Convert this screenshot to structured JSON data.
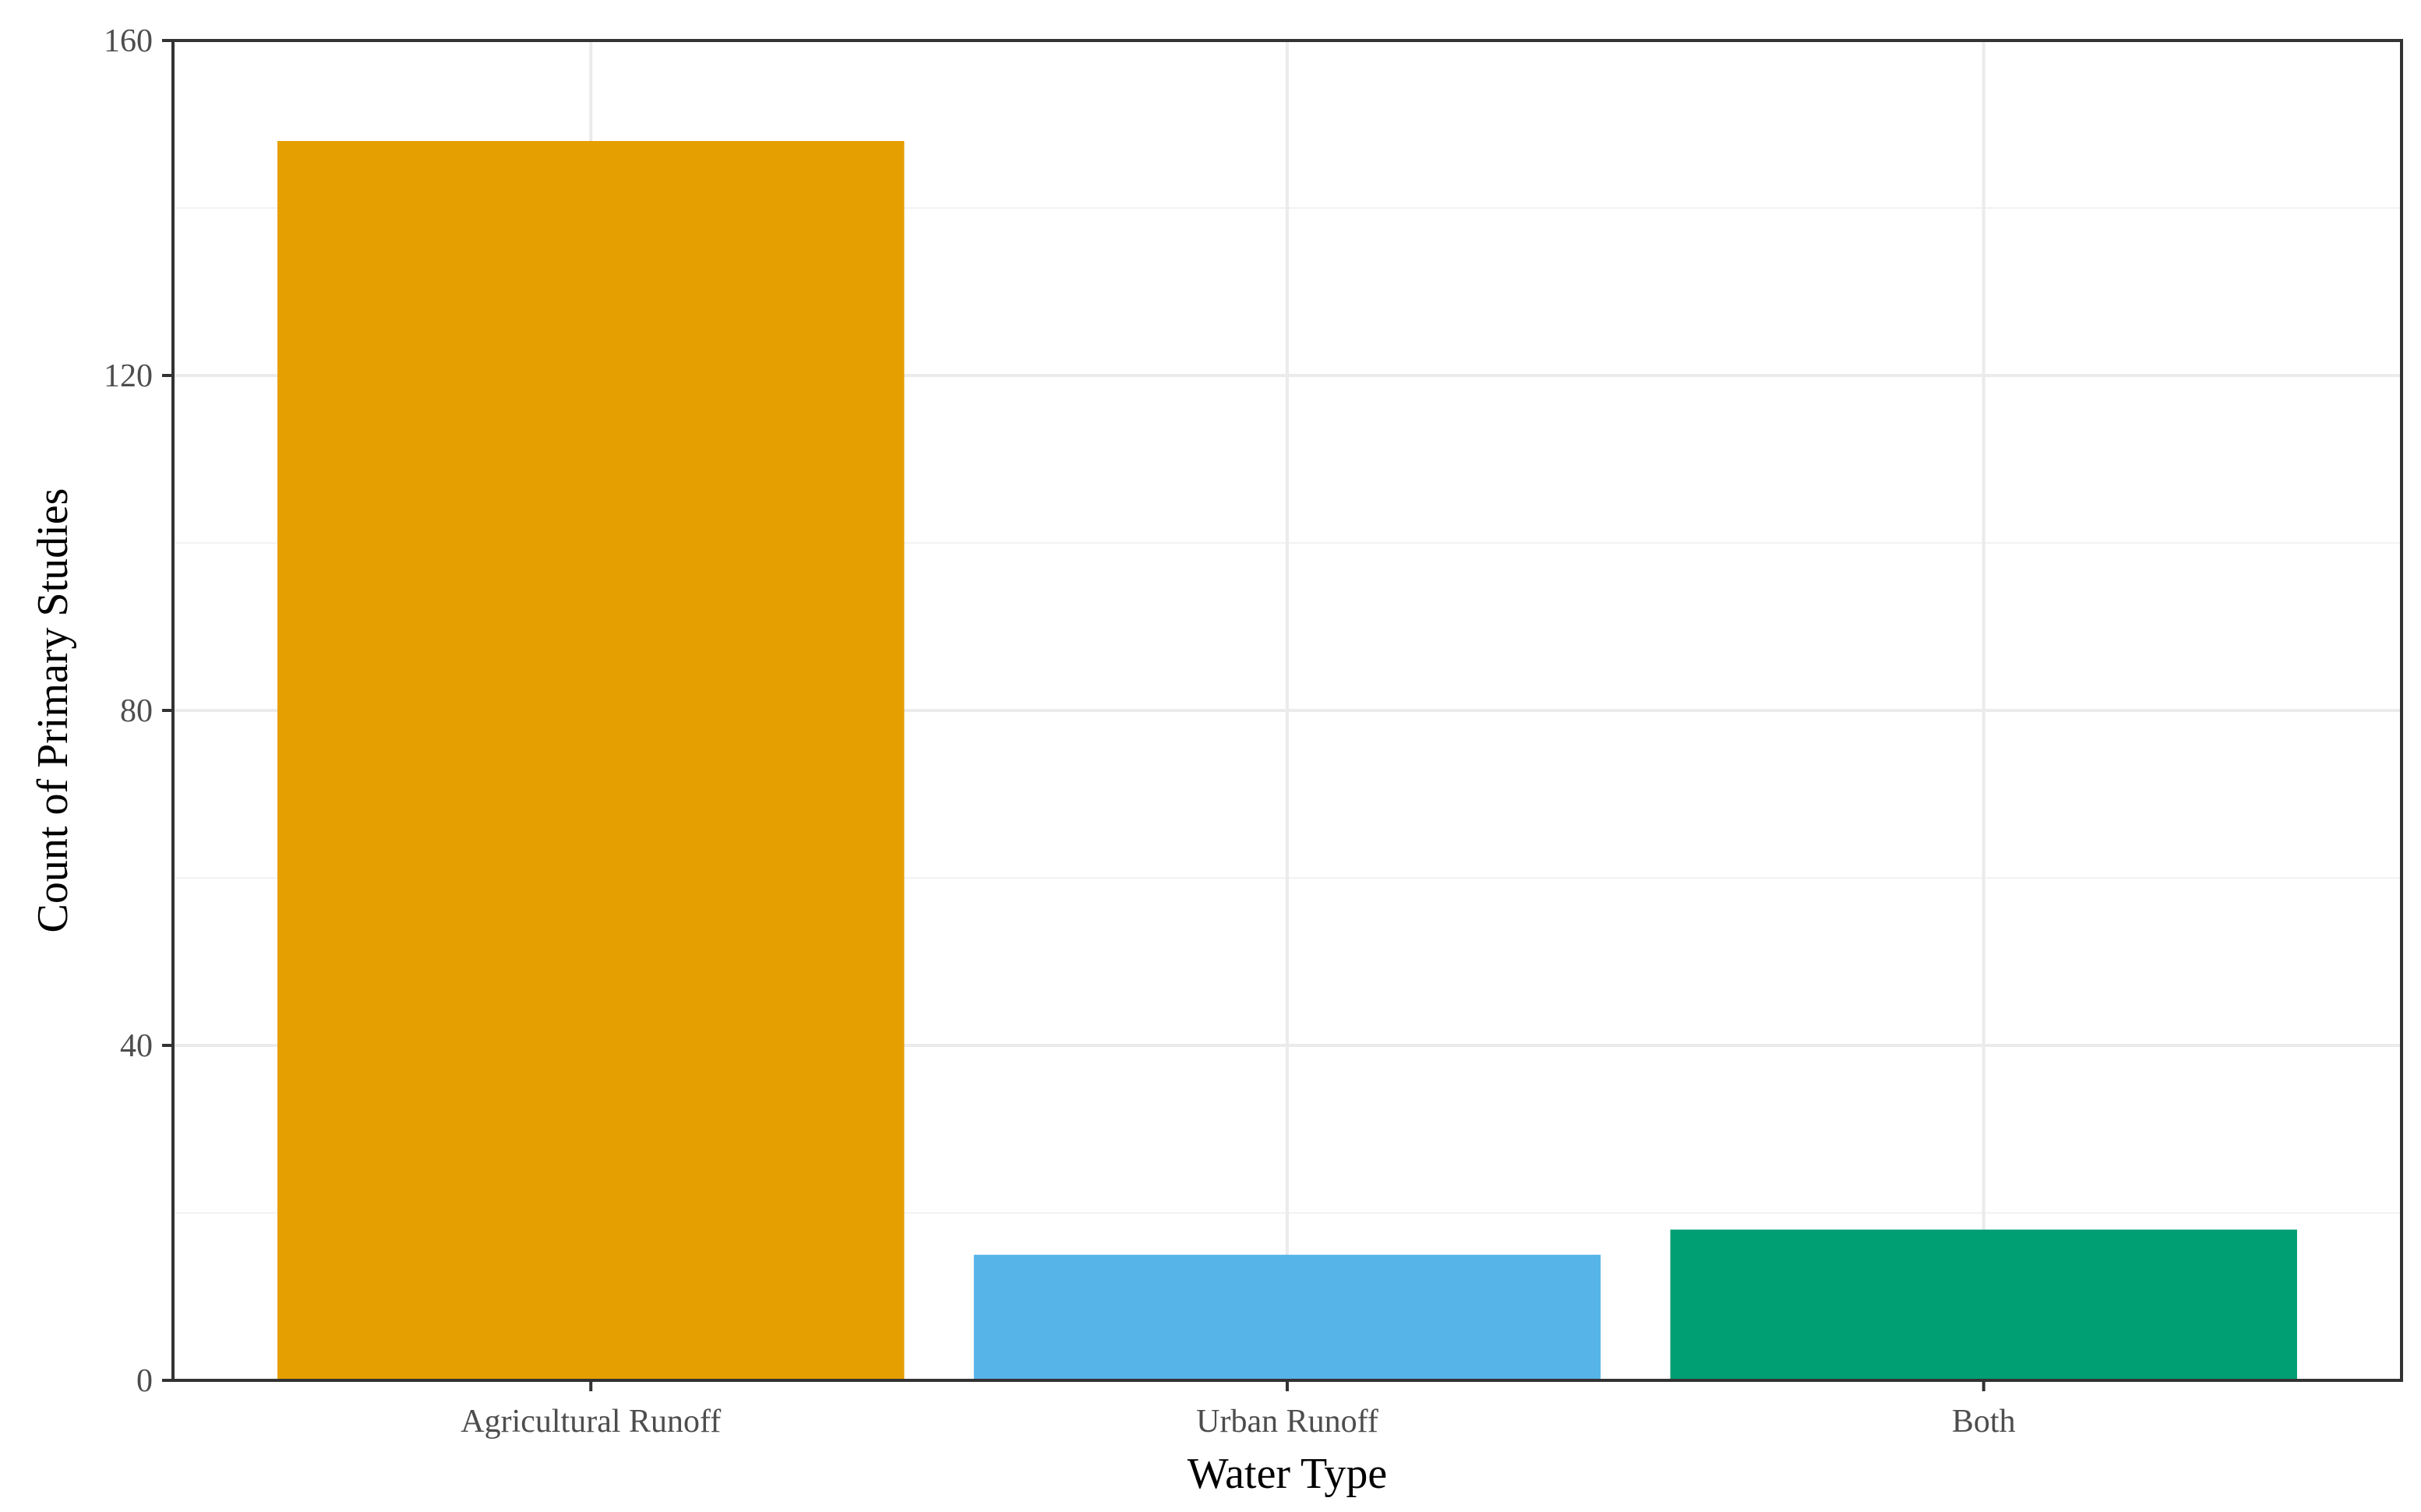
{
  "chart_data": {
    "type": "bar",
    "categories": [
      "Agricultural Runoff",
      "Urban Runoff",
      "Both"
    ],
    "values": [
      148,
      15,
      18
    ],
    "colors": [
      "#E69F00",
      "#56B4E9",
      "#009E73"
    ],
    "title": "",
    "xlabel": "Water Type",
    "ylabel": "Count of Primary Studies",
    "ylim": [
      0,
      160
    ],
    "yticks": [
      0,
      40,
      80,
      120,
      160
    ],
    "grid": true,
    "legend": "none"
  }
}
